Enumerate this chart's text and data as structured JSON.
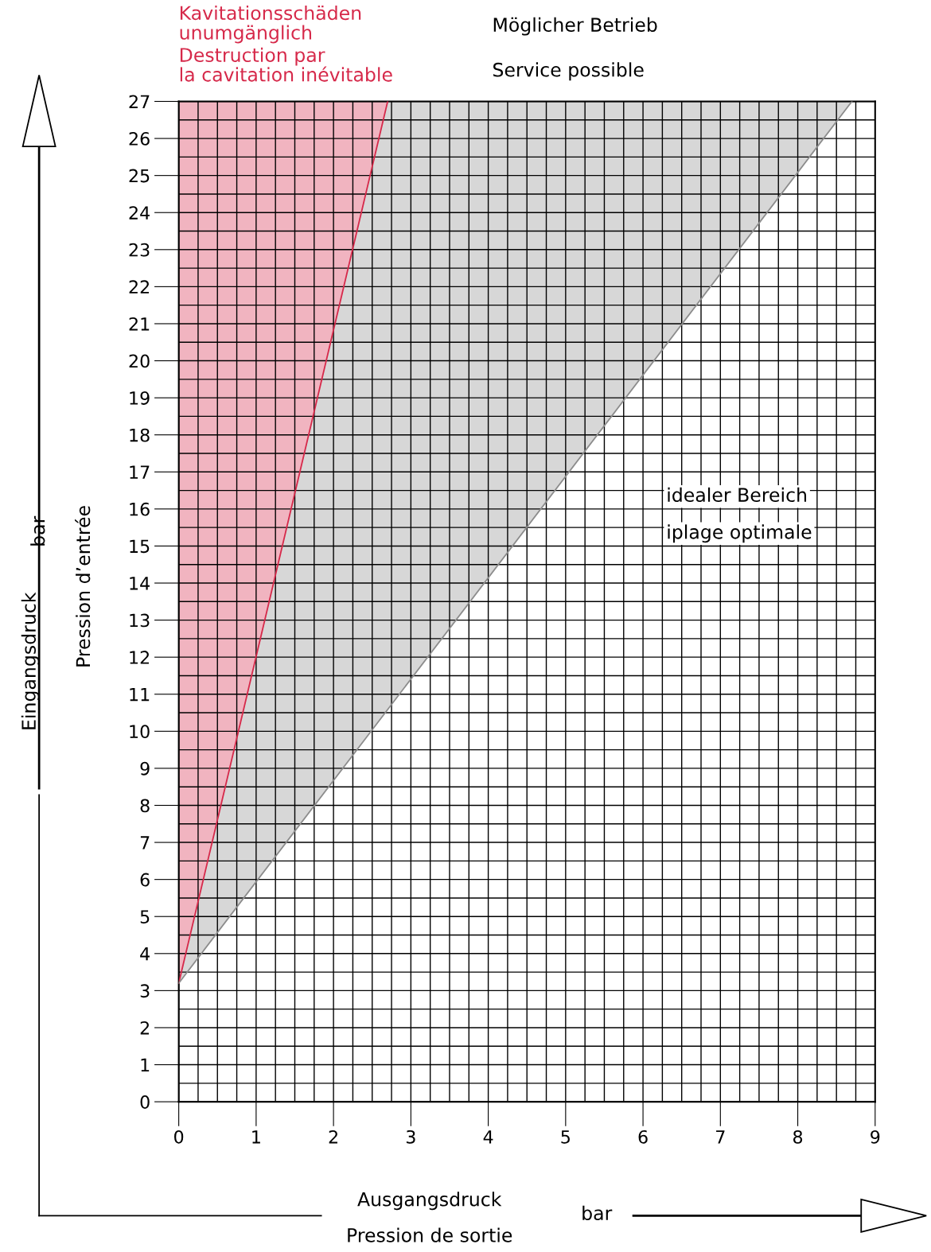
{
  "chart_data": {
    "type": "line",
    "xlabel": "Ausgangsdruck",
    "ylabel": "Eingangsdruck",
    "series": [
      {
        "color": "#d6294a",
        "x": [
          0,
          2.7
        ],
        "values": [
          3.2,
          27
        ]
      },
      {
        "color": "#8c8c8c",
        "x": [
          0,
          8.7
        ],
        "values": [
          3.2,
          27
        ]
      }
    ],
    "xlim": [
      0,
      9
    ],
    "ylim": [
      0,
      27
    ],
    "xticks": [
      0,
      1,
      2,
      3,
      4,
      5,
      6,
      7,
      8,
      9
    ],
    "yticks": [
      0,
      1,
      2,
      3,
      4,
      5,
      6,
      7,
      8,
      9,
      10,
      11,
      12,
      13,
      14,
      15,
      16,
      17,
      18,
      19,
      20,
      21,
      22,
      23,
      24,
      25,
      26,
      27
    ],
    "grid": true,
    "annotations": [
      "Kavitationsschäden\nunumgänglich",
      "Destruction par\nla cavitation inévitable",
      "Möglicher Betrieb",
      "Service possible",
      "idealer Bereich",
      "iplage optimale",
      "Pression d’entrée",
      "bar",
      "Pression de sortie",
      "bar"
    ]
  }
}
